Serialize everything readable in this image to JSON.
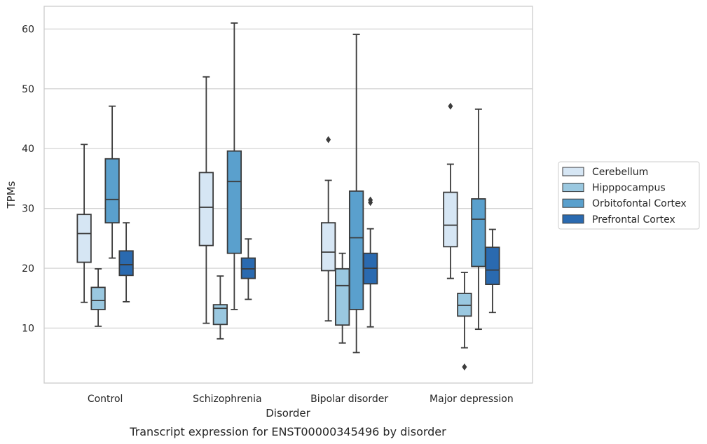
{
  "chart_data": {
    "type": "box",
    "caption": "Transcript expression for ENST00000345496 by disorder",
    "xlabel": "Disorder",
    "ylabel": "TPMs",
    "ylim": [
      0.8,
      63.8
    ],
    "yticks": [
      10,
      20,
      30,
      40,
      50,
      60
    ],
    "grid": "horizontal",
    "legend_position": "right",
    "categories": [
      "Control",
      "Schizophrenia",
      "Bipolar disorder",
      "Major depression"
    ],
    "series": [
      {
        "name": "Cerebellum",
        "color": "#d6e6f4",
        "boxes": [
          {
            "whisker_low": 14.3,
            "q1": 21.0,
            "median": 25.8,
            "q3": 29.0,
            "whisker_high": 40.7,
            "outliers": []
          },
          {
            "whisker_low": 10.8,
            "q1": 23.8,
            "median": 30.2,
            "q3": 36.0,
            "whisker_high": 52.0,
            "outliers": []
          },
          {
            "whisker_low": 11.2,
            "q1": 19.6,
            "median": 22.7,
            "q3": 27.6,
            "whisker_high": 34.7,
            "outliers": [
              41.5
            ]
          },
          {
            "whisker_low": 18.3,
            "q1": 23.6,
            "median": 27.2,
            "q3": 32.7,
            "whisker_high": 37.4,
            "outliers": [
              47.1
            ]
          }
        ]
      },
      {
        "name": "Hipppocampus",
        "color": "#9ac8e0",
        "boxes": [
          {
            "whisker_low": 10.3,
            "q1": 13.1,
            "median": 14.6,
            "q3": 16.8,
            "whisker_high": 19.9,
            "outliers": []
          },
          {
            "whisker_low": 8.2,
            "q1": 10.6,
            "median": 13.3,
            "q3": 13.9,
            "whisker_high": 18.7,
            "outliers": []
          },
          {
            "whisker_low": 7.5,
            "q1": 10.5,
            "median": 17.1,
            "q3": 19.9,
            "whisker_high": 22.5,
            "outliers": []
          },
          {
            "whisker_low": 6.7,
            "q1": 12.0,
            "median": 13.8,
            "q3": 15.8,
            "whisker_high": 19.3,
            "outliers": [
              3.5
            ]
          }
        ]
      },
      {
        "name": "Orbitofontal Cortex",
        "color": "#5aa0cd",
        "boxes": [
          {
            "whisker_low": 21.7,
            "q1": 27.6,
            "median": 31.5,
            "q3": 38.3,
            "whisker_high": 47.1,
            "outliers": []
          },
          {
            "whisker_low": 13.1,
            "q1": 22.5,
            "median": 34.5,
            "q3": 39.6,
            "whisker_high": 61.0,
            "outliers": []
          },
          {
            "whisker_low": 5.9,
            "q1": 13.1,
            "median": 25.1,
            "q3": 32.9,
            "whisker_high": 59.1,
            "outliers": []
          },
          {
            "whisker_low": 9.8,
            "q1": 20.3,
            "median": 28.2,
            "q3": 31.6,
            "whisker_high": 46.6,
            "outliers": []
          }
        ]
      },
      {
        "name": "Prefrontal Cortex",
        "color": "#2a6ab0",
        "boxes": [
          {
            "whisker_low": 14.4,
            "q1": 18.8,
            "median": 20.6,
            "q3": 22.9,
            "whisker_high": 27.6,
            "outliers": []
          },
          {
            "whisker_low": 14.8,
            "q1": 18.3,
            "median": 19.9,
            "q3": 21.7,
            "whisker_high": 24.9,
            "outliers": []
          },
          {
            "whisker_low": 10.2,
            "q1": 17.4,
            "median": 20.0,
            "q3": 22.5,
            "whisker_high": 26.6,
            "outliers": [
              31.0,
              31.4
            ]
          },
          {
            "whisker_low": 12.6,
            "q1": 17.3,
            "median": 19.7,
            "q3": 23.5,
            "whisker_high": 26.5,
            "outliers": []
          }
        ]
      }
    ]
  }
}
